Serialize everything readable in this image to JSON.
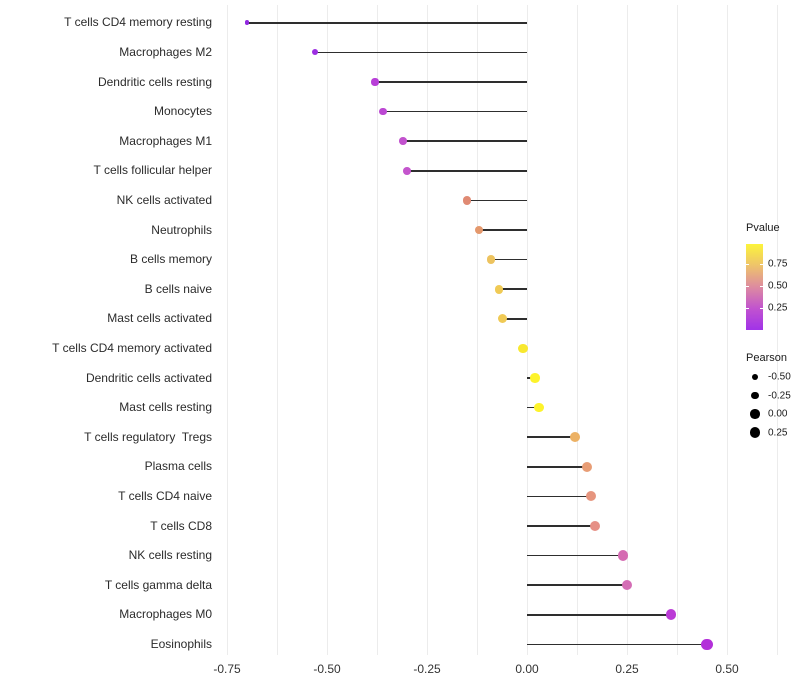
{
  "chart_data": {
    "type": "lollipop",
    "orientation": "horizontal",
    "title": "",
    "xlabel": "",
    "ylabel": "",
    "xlim": [
      -0.875,
      0.66
    ],
    "x_ticks": [
      "-0.75",
      "-0.50",
      "-0.25",
      "0.00",
      "0.25",
      "0.50"
    ],
    "x_tick_values": [
      -0.75,
      -0.5,
      -0.25,
      0.0,
      0.25,
      0.5
    ],
    "grid": "vertical-only",
    "categories": [
      "T cells CD4 memory resting",
      "Macrophages M2",
      "Dendritic cells resting",
      "Monocytes",
      "Macrophages M1",
      "T cells follicular helper",
      "NK cells activated",
      "Neutrophils",
      "B cells memory",
      "B cells naive",
      "Mast cells activated",
      "T cells CD4 memory activated",
      "Dendritic cells activated",
      "Mast cells resting",
      "T cells regulatory  Tregs",
      "Plasma cells",
      "T cells CD4 naive",
      "T cells CD8",
      "NK cells resting",
      "T cells gamma delta",
      "Macrophages M0",
      "Eosinophils"
    ],
    "series": [
      {
        "name": "Pearson",
        "values": [
          -0.7,
          -0.53,
          -0.38,
          -0.36,
          -0.31,
          -0.3,
          -0.15,
          -0.12,
          -0.09,
          -0.07,
          -0.06,
          -0.01,
          0.02,
          0.03,
          0.12,
          0.15,
          0.16,
          0.17,
          0.24,
          0.25,
          0.36,
          0.45
        ]
      }
    ],
    "point_colors": [
      "#9128e0",
      "#9c2ee2",
      "#b83fd8",
      "#bc48d3",
      "#c252ce",
      "#c455cd",
      "#e08a73",
      "#e4986c",
      "#edc35f",
      "#f0ca55",
      "#f0ca55",
      "#f8e82f",
      "#fdf32b",
      "#fdf32b",
      "#ecb164",
      "#e89d75",
      "#e6957e",
      "#e69086",
      "#d56bb2",
      "#d46db5",
      "#bb3bd6",
      "#b32fd9"
    ],
    "stem_color": "#2e2e2e",
    "legend_position": "right"
  },
  "legend": {
    "colorbar": {
      "title": "Pvalue",
      "labels": [
        "0.75",
        "0.50",
        "0.25"
      ],
      "label_values": [
        0.75,
        0.5,
        0.25
      ],
      "gradient_stops_bottom_to_top": [
        "#a133e8",
        "#c153cf",
        "#dd8ba0",
        "#eec36b",
        "#fcf43b"
      ]
    },
    "size": {
      "title": "Pearson",
      "labels": [
        "-0.50",
        "-0.25",
        "0.00",
        "0.25"
      ],
      "label_values": [
        -0.5,
        -0.25,
        0.0,
        0.25
      ],
      "dot_color": "#000000"
    }
  }
}
